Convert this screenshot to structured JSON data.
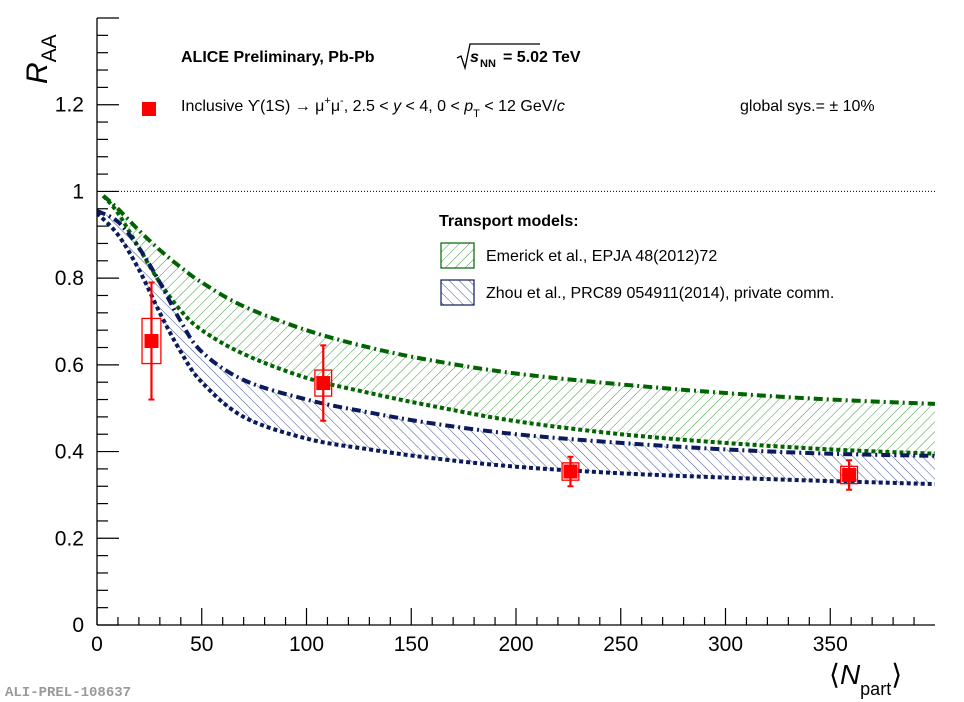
{
  "preprint_id": "ALI-PREL-108637",
  "chart_data": {
    "type": "scatter",
    "title": "ALICE Preliminary, Pb-Pb",
    "energy": {
      "prefix": "s",
      "subscript": "NN",
      "value": "= 5.02 TeV"
    },
    "xlabel": {
      "left": "⟨",
      "main": "N",
      "sub": "part",
      "right": "⟩"
    },
    "ylabel": {
      "main": "R",
      "sub": "AA"
    },
    "xlim": [
      0,
      400
    ],
    "ylim": [
      0,
      1.4
    ],
    "xticks": [
      0,
      50,
      100,
      150,
      200,
      250,
      300,
      350
    ],
    "xtick_labels": [
      "0",
      "50",
      "100",
      "150",
      "200",
      "250",
      "300",
      "350"
    ],
    "yticks": [
      0,
      0.2,
      0.4,
      0.6,
      0.8,
      1.0,
      1.2
    ],
    "ytick_labels": [
      "0",
      "0.2",
      "0.4",
      "0.6",
      "0.8",
      "1",
      "1.2"
    ],
    "reference_line": 1.0,
    "data_legend": {
      "label_part1": "Inclusive ϒ(1S) → μ",
      "sup1": "+",
      "mid": "μ",
      "sup2": "-",
      "label_part2": ", 2.5 < ",
      "y_var": "y",
      "label_part3": " < 4, 0 < ",
      "p_var": "p",
      "p_sub": "T",
      "label_part4": " < 12 GeV/",
      "c_var": "c",
      "global_sys": "global sys.= ± 10%"
    },
    "models_title": "Transport models:",
    "series": [
      {
        "name": "Inclusive Υ(1S) data",
        "color": "#ff0000",
        "points": [
          {
            "x": 26,
            "y": 0.655,
            "stat": 0.135,
            "sys": 0.052,
            "sys_halfwidth_x": 4.5
          },
          {
            "x": 108,
            "y": 0.558,
            "stat": 0.087,
            "sys": 0.03,
            "sys_halfwidth_x": 4
          },
          {
            "x": 226,
            "y": 0.354,
            "stat": 0.034,
            "sys": 0.02,
            "sys_halfwidth_x": 4
          },
          {
            "x": 359,
            "y": 0.346,
            "stat": 0.034,
            "sys": 0.02,
            "sys_halfwidth_x": 4
          }
        ]
      }
    ],
    "models": [
      {
        "name": "Emerick et al., EPJA 48(2012)72",
        "color": "#006400",
        "upper": {
          "x": [
            3,
            10,
            20,
            30,
            40,
            50,
            70,
            100,
            130,
            160,
            200,
            250,
            300,
            350,
            400
          ],
          "y": [
            0.99,
            0.96,
            0.91,
            0.865,
            0.825,
            0.79,
            0.735,
            0.68,
            0.64,
            0.61,
            0.58,
            0.555,
            0.535,
            0.52,
            0.51
          ]
        },
        "lower": {
          "x": [
            3,
            10,
            20,
            30,
            40,
            50,
            70,
            100,
            130,
            160,
            200,
            250,
            300,
            350,
            400
          ],
          "y": [
            0.99,
            0.95,
            0.87,
            0.79,
            0.725,
            0.68,
            0.625,
            0.57,
            0.535,
            0.505,
            0.47,
            0.44,
            0.42,
            0.405,
            0.395
          ]
        }
      },
      {
        "name": "Zhou et al., PRC89 054911(2014), private comm.",
        "color": "#0a1a5c",
        "upper": {
          "x": [
            0,
            10,
            20,
            30,
            40,
            50,
            70,
            100,
            130,
            160,
            200,
            250,
            300,
            350,
            400
          ],
          "y": [
            0.955,
            0.93,
            0.87,
            0.79,
            0.7,
            0.63,
            0.565,
            0.52,
            0.49,
            0.465,
            0.44,
            0.42,
            0.405,
            0.395,
            0.39
          ]
        },
        "lower": {
          "x": [
            0,
            10,
            20,
            30,
            40,
            50,
            70,
            100,
            130,
            160,
            200,
            250,
            300,
            350,
            400
          ],
          "y": [
            0.95,
            0.9,
            0.82,
            0.72,
            0.63,
            0.56,
            0.48,
            0.43,
            0.405,
            0.385,
            0.365,
            0.35,
            0.34,
            0.332,
            0.325
          ]
        }
      }
    ]
  }
}
